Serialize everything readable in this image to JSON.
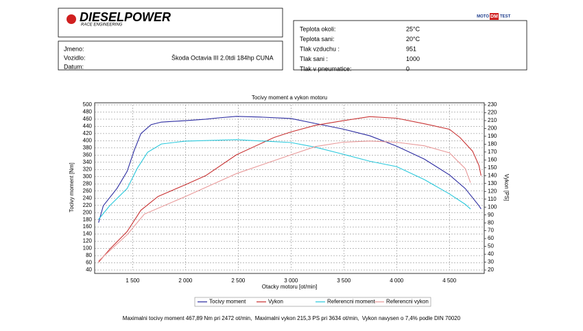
{
  "header": {
    "logo": "DIESELPOWER",
    "logo_sub": "RACE ENGINEERING",
    "badge": [
      "MOTO",
      "DM",
      "TEST"
    ],
    "vehicle": [
      [
        "Jmeno:",
        ""
      ],
      [
        "Vozidlo:",
        "Škoda Octavia III 2.0tdi 184hp CUNA"
      ],
      [
        "Datum:",
        ""
      ]
    ],
    "conditions": [
      [
        "Teplota okoli:",
        "25°C"
      ],
      [
        "Teplota sani:",
        "20°C"
      ],
      [
        "Tlak vzduchu :",
        "951"
      ],
      [
        "Tlak sani :",
        "1000"
      ],
      [
        "Tlak v pneumatice:",
        "0"
      ]
    ]
  },
  "chart_data": {
    "type": "line",
    "title": "Tocivy moment a vykon motoru",
    "x_label": "Otacky motoru [ot/min]",
    "y_label": "Tocivy moment [Nm]",
    "y2_label": "Vykon [PS]",
    "xlim": [
      1140,
      4830
    ],
    "ylim": [
      40,
      500
    ],
    "y2lim": [
      20,
      230
    ],
    "grid": true,
    "xticks": [
      {
        "value": 1500,
        "label": "1 500"
      },
      {
        "value": 2000,
        "label": "2 000"
      },
      {
        "value": 2500,
        "label": "2 500"
      },
      {
        "value": 3000,
        "label": "3 000"
      },
      {
        "value": 3500,
        "label": "3 500"
      },
      {
        "value": 4000,
        "label": "4 000"
      },
      {
        "value": 4500,
        "label": "4 500"
      }
    ],
    "yticks": [
      40,
      60,
      80,
      100,
      120,
      140,
      160,
      180,
      200,
      220,
      240,
      260,
      280,
      300,
      320,
      340,
      360,
      380,
      400,
      420,
      440,
      460,
      480,
      500
    ],
    "y2ticks": [
      20,
      30,
      40,
      50,
      60,
      70,
      80,
      90,
      100,
      110,
      120,
      130,
      140,
      150,
      160,
      170,
      180,
      190,
      200,
      210,
      220,
      230
    ],
    "series": [
      {
        "name": "Tocivy moment",
        "color": "#2a2aa0",
        "axis": "y",
        "x": [
          1177,
          1222,
          1351,
          1448,
          1513,
          1578,
          1675,
          1772,
          2000,
          2192,
          2321,
          2483,
          2709,
          3000,
          3232,
          3486,
          3745,
          4000,
          4262,
          4500,
          4650,
          4780,
          4800
        ],
        "values": [
          172,
          219,
          267,
          315,
          372,
          420,
          445,
          452,
          456,
          460,
          464,
          468,
          466,
          462,
          448,
          433,
          414,
          385,
          349,
          305,
          267,
          219,
          210
        ]
      },
      {
        "name": "Vykon",
        "color": "#c83232",
        "axis": "y2",
        "x": [
          1177,
          1287,
          1448,
          1578,
          1740,
          2000,
          2192,
          2483,
          2839,
          3000,
          3232,
          3486,
          3745,
          4000,
          4262,
          4500,
          4600,
          4720,
          4780,
          4800
        ],
        "values": [
          30,
          47,
          69,
          96,
          113.5,
          128.5,
          140,
          166.5,
          188.5,
          195.6,
          204,
          209.7,
          215,
          213,
          206,
          199,
          188.5,
          171,
          153,
          140
        ]
      },
      {
        "name": "Referencni moment",
        "color": "#28c8dc",
        "axis": "y",
        "x": [
          1177,
          1282,
          1448,
          1545,
          1642,
          1772,
          2000,
          2483,
          3000,
          3232,
          3486,
          3745,
          4000,
          4262,
          4500,
          4650,
          4700
        ],
        "values": [
          181,
          219,
          267,
          324,
          368,
          391,
          399,
          403,
          395,
          382,
          363,
          343,
          328,
          292,
          252,
          223,
          210
        ]
      },
      {
        "name": "Referencni vykon",
        "color": "#e89898",
        "axis": "y2",
        "x": [
          1177,
          1448,
          1610,
          2000,
          2483,
          3000,
          3232,
          3486,
          3745,
          4000,
          4262,
          4500,
          4650,
          4700
        ],
        "values": [
          31.5,
          65,
          91,
          113.5,
          142.6,
          166.5,
          177,
          182.4,
          184,
          182.4,
          178,
          169,
          149,
          131
        ]
      }
    ],
    "footer": "Maximalni tocivy moment 467,89 Nm pri 2472 ot/min,  Maximalni vykon 215,3 PS pri 3634 ot/min,  Vykon navysen o 7,4% podle DIN 70020"
  }
}
